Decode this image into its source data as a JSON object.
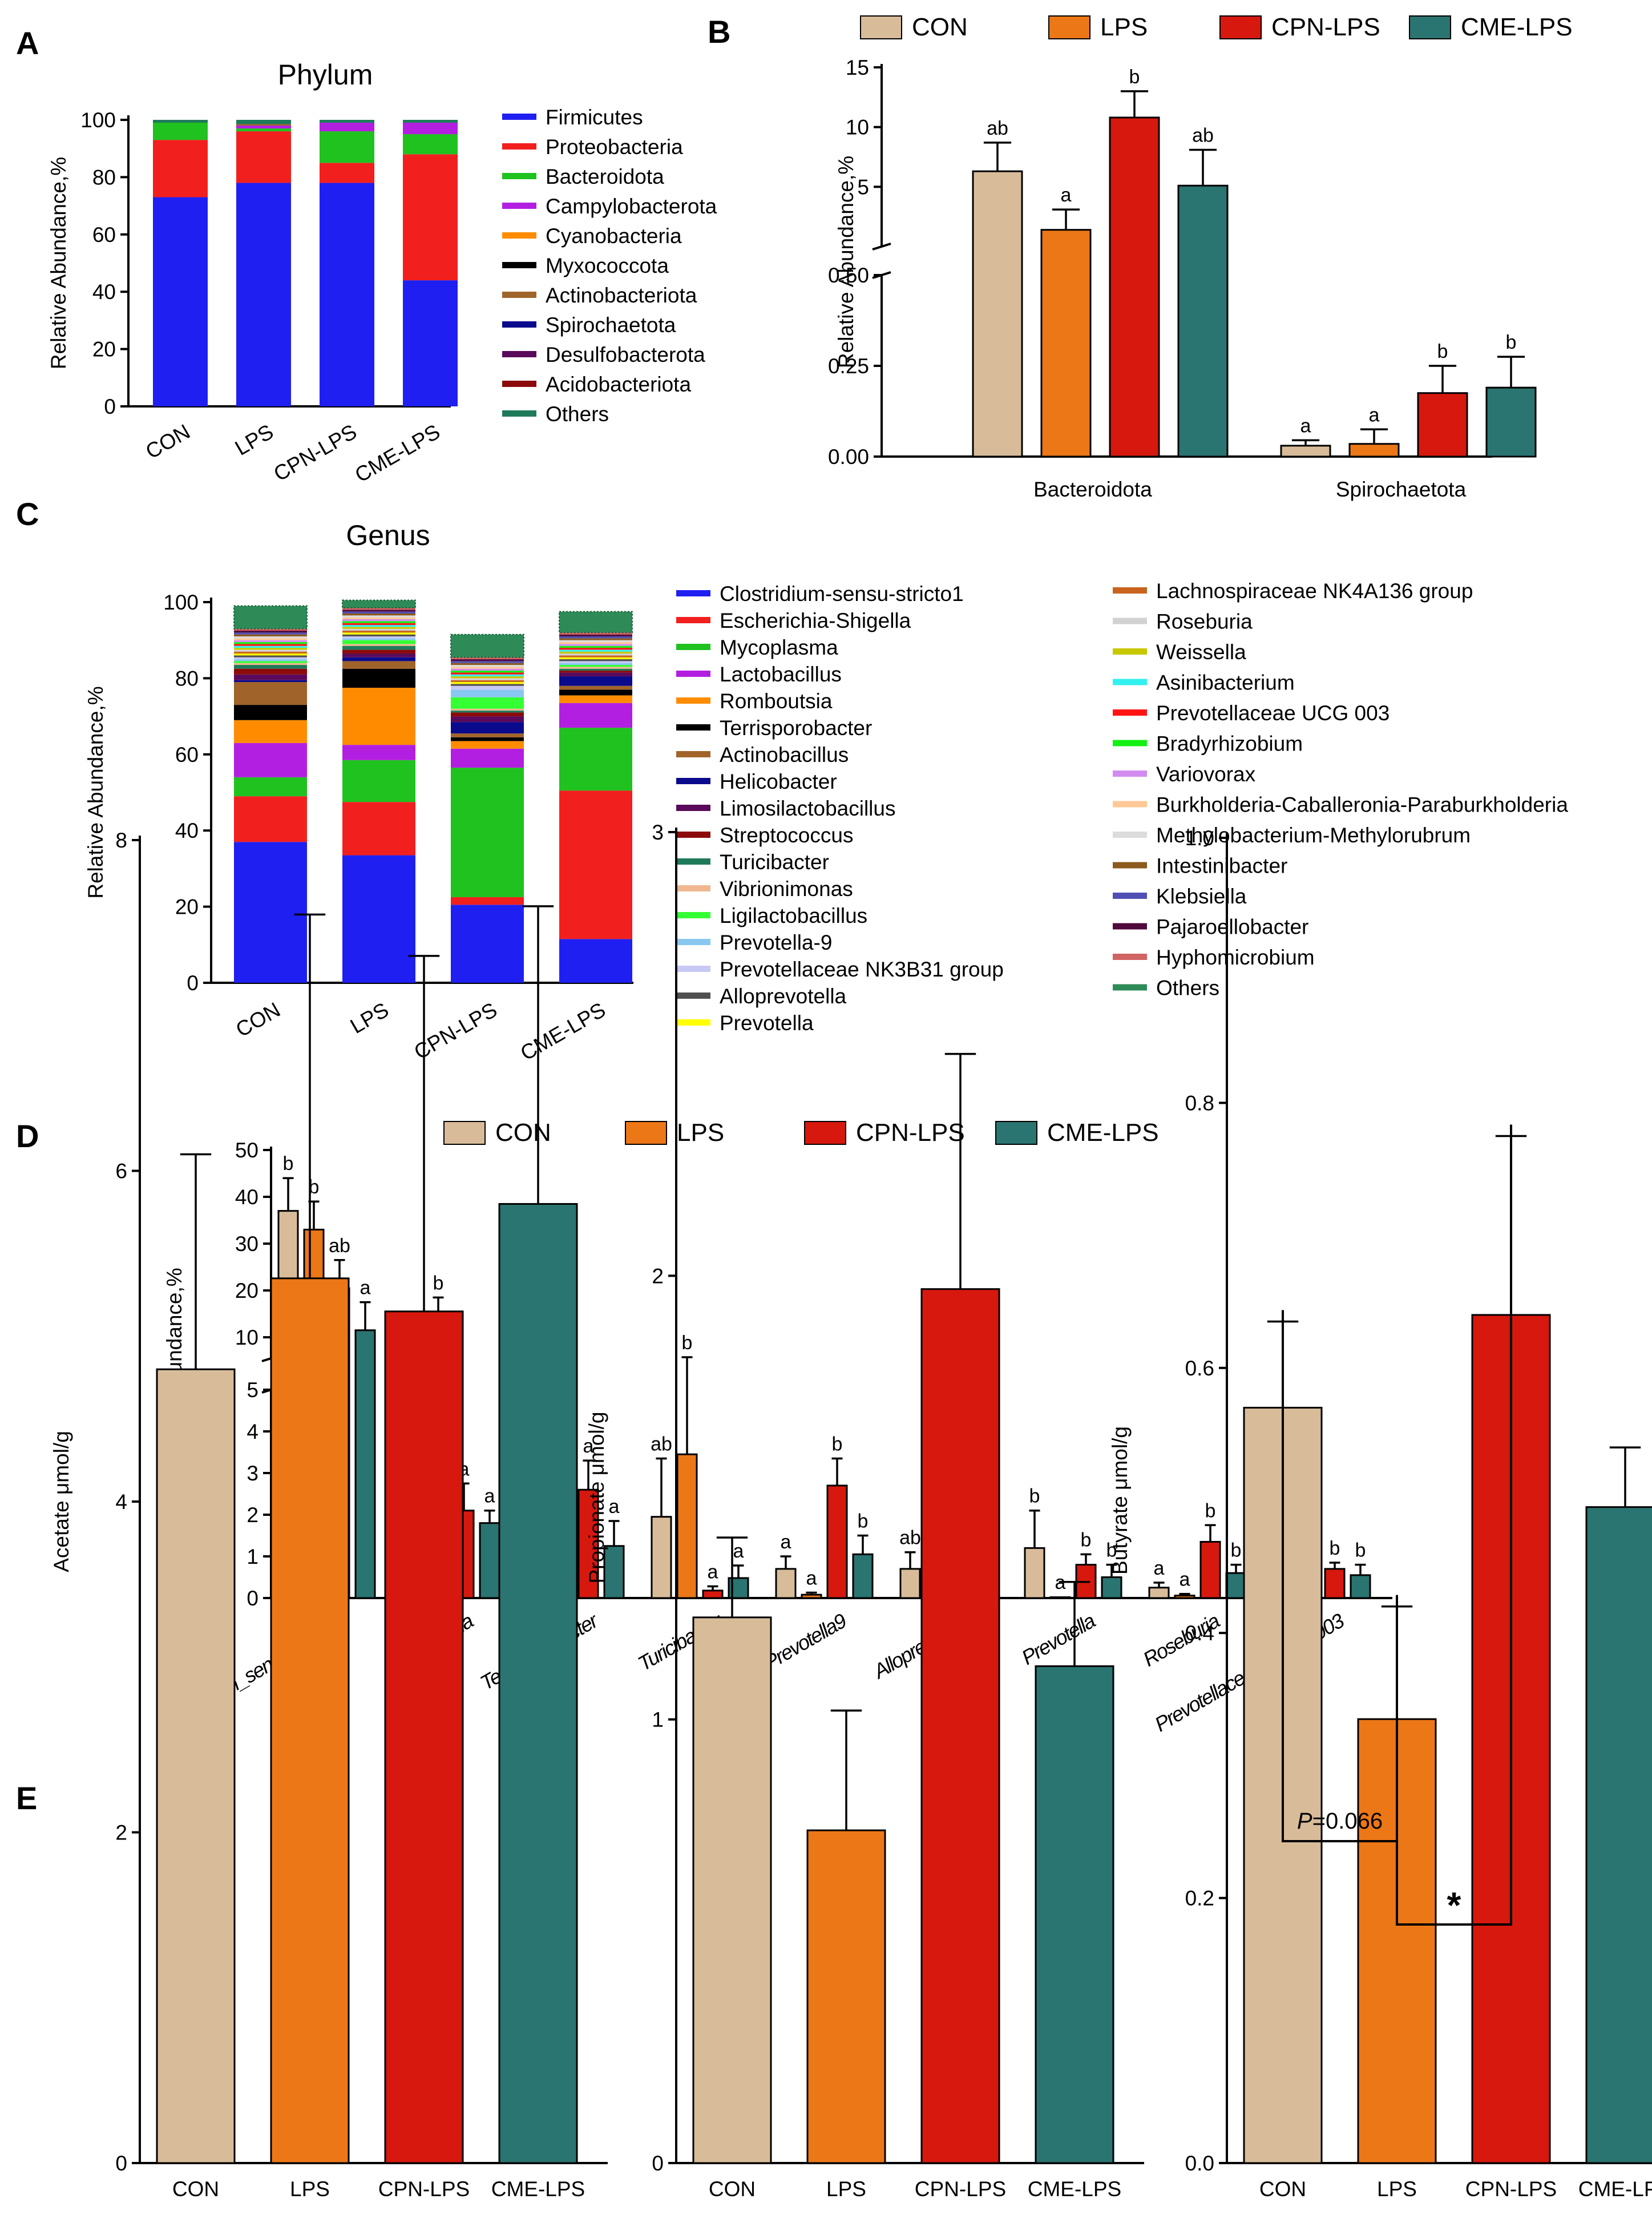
{
  "colors": {
    "CON": "#d8bc9a",
    "LPS": "#ec7716",
    "CPN-LPS": "#d7180e",
    "CME-LPS": "#2a7471"
  },
  "group_legend": [
    "CON",
    "LPS",
    "CPN-LPS",
    "CME-LPS"
  ],
  "chart_data": [
    {
      "id": "A",
      "type": "bar",
      "stacked": true,
      "panel_label": "A",
      "title": "Phylum",
      "ylabel": "Relative Abundance,%",
      "ylim": [
        0,
        100
      ],
      "yticks": [
        0,
        20,
        40,
        60,
        80,
        100
      ],
      "categories": [
        "CON",
        "LPS",
        "CPN-LPS",
        "CME-LPS"
      ],
      "series": [
        {
          "name": "Firmicutes",
          "color": "#1f1ff2",
          "values": [
            73,
            78,
            78,
            44
          ]
        },
        {
          "name": "Proteobacteria",
          "color": "#f21f1f",
          "values": [
            20,
            18,
            7,
            44
          ]
        },
        {
          "name": "Bacteroidota",
          "color": "#1fc21f",
          "values": [
            6,
            1,
            11,
            7
          ]
        },
        {
          "name": "Campylobacterota",
          "color": "#b31fe0",
          "values": [
            0,
            1,
            3,
            4
          ]
        },
        {
          "name": "Cyanobacteria",
          "color": "#ff8c00",
          "values": [
            0,
            0,
            0,
            0
          ]
        },
        {
          "name": "Myxococcota",
          "color": "#000000",
          "values": [
            0,
            0,
            0,
            0
          ]
        },
        {
          "name": "Actinobacteriota",
          "color": "#a0642a",
          "values": [
            0,
            0.5,
            0,
            0
          ]
        },
        {
          "name": "Spirochaetota",
          "color": "#0a0a8c",
          "values": [
            0,
            0,
            0,
            0
          ]
        },
        {
          "name": "Desulfobacterota",
          "color": "#5a0a5a",
          "values": [
            0,
            0,
            0,
            0
          ]
        },
        {
          "name": "Acidobacteriota",
          "color": "#8c0a0a",
          "values": [
            0,
            0,
            0,
            0
          ]
        },
        {
          "name": "Others",
          "color": "#1f7a5a",
          "values": [
            1,
            1.5,
            1,
            1
          ]
        }
      ]
    },
    {
      "id": "B",
      "type": "bar",
      "panel_label": "B",
      "ylabel": "Relative Abundance,%",
      "broken_axis": true,
      "upper_yticks": [
        5,
        10,
        15
      ],
      "lower_yticks": [
        0.0,
        0.25,
        0.5
      ],
      "lower_ytick_labels": [
        "0.00",
        "0.25",
        "0.50"
      ],
      "categories": [
        "Bacteroidota",
        "Spirochaetota"
      ],
      "series": [
        {
          "name": "CON",
          "values": [
            6.3,
            0.03
          ],
          "errors": [
            2.4,
            0.015
          ],
          "letters": [
            "ab",
            "a"
          ]
        },
        {
          "name": "LPS",
          "values": [
            1.4,
            0.035
          ],
          "errors": [
            1.7,
            0.04
          ],
          "letters": [
            "a",
            "a"
          ]
        },
        {
          "name": "CPN-LPS",
          "values": [
            10.8,
            0.175
          ],
          "errors": [
            2.2,
            0.075
          ],
          "letters": [
            "b",
            "b"
          ]
        },
        {
          "name": "CME-LPS",
          "values": [
            5.1,
            0.19
          ],
          "errors": [
            3.0,
            0.085
          ],
          "letters": [
            "ab",
            "b"
          ]
        }
      ]
    },
    {
      "id": "C",
      "type": "bar",
      "stacked": true,
      "panel_label": "C",
      "title": "Genus",
      "ylabel": "Relative Abundance,%",
      "ylim": [
        0,
        100
      ],
      "yticks": [
        0,
        20,
        40,
        60,
        80,
        100
      ],
      "categories": [
        "CON",
        "LPS",
        "CPN-LPS",
        "CME-LPS"
      ],
      "series": [
        {
          "name": "Clostridium-sensu-stricto1",
          "color": "#1f1ff2",
          "values": [
            37,
            33.5,
            20.5,
            11.5
          ]
        },
        {
          "name": "Escherichia-Shigella",
          "color": "#f21f1f",
          "values": [
            12,
            14,
            2,
            39
          ]
        },
        {
          "name": "Mycoplasma",
          "color": "#1fc21f",
          "values": [
            5,
            11,
            34,
            16.5
          ]
        },
        {
          "name": "Lactobacillus",
          "color": "#b31fe0",
          "values": [
            9,
            4,
            5,
            6.5
          ]
        },
        {
          "name": "Romboutsia",
          "color": "#ff8c00",
          "values": [
            6,
            15,
            2,
            2
          ]
        },
        {
          "name": "Terrisporobacter",
          "color": "#000000",
          "values": [
            4,
            5,
            1,
            1.5
          ]
        },
        {
          "name": "Actinobacillus",
          "color": "#a0642a",
          "values": [
            6,
            2,
            1,
            1
          ]
        },
        {
          "name": "Helicobacter",
          "color": "#0a0a8c",
          "values": [
            0.5,
            1,
            3,
            2.5
          ]
        },
        {
          "name": "Limosilactobacillus",
          "color": "#5a0a5a",
          "values": [
            1.5,
            1,
            1.5,
            1
          ]
        },
        {
          "name": "Streptococcus",
          "color": "#8c0a0a",
          "values": [
            1.5,
            1,
            1,
            0.5
          ]
        },
        {
          "name": "Turicibacter",
          "color": "#1f7a5a",
          "values": [
            1,
            1,
            0.5,
            0.5
          ]
        },
        {
          "name": "Vibrionimonas",
          "color": "#f0b890",
          "values": [
            0.5,
            0.5,
            0.5,
            0.5
          ]
        },
        {
          "name": "Ligilactobacillus",
          "color": "#33ff33",
          "values": [
            0.5,
            1,
            3,
            0.5
          ]
        },
        {
          "name": "Prevotella-9",
          "color": "#88c8f0",
          "values": [
            0.5,
            0.5,
            2,
            0.5
          ]
        },
        {
          "name": "Prevotellaceae NK3B31 group",
          "color": "#c8c8f5",
          "values": [
            0.5,
            0.5,
            1,
            0.5
          ]
        },
        {
          "name": "Alloprevotella",
          "color": "#505050",
          "values": [
            0.5,
            0.5,
            0.5,
            0.5
          ]
        },
        {
          "name": "Prevotella",
          "color": "#ffff00",
          "values": [
            0.5,
            0.5,
            0.5,
            0.5
          ]
        },
        {
          "name": "Lachnospiraceae NK4A136 group",
          "color": "#c8641e",
          "values": [
            0.5,
            0.5,
            0.5,
            0.5
          ]
        },
        {
          "name": "Roseburia",
          "color": "#d2d2d2",
          "values": [
            0.5,
            0.5,
            0.5,
            0.5
          ]
        },
        {
          "name": "Weissella",
          "color": "#c8c800",
          "values": [
            0.5,
            0.5,
            0.5,
            0.5
          ]
        },
        {
          "name": "Asinibacterium",
          "color": "#33f0f0",
          "values": [
            0.5,
            0.5,
            0.5,
            0.5
          ]
        },
        {
          "name": "Prevotellaceae UCG 003",
          "color": "#ff1414",
          "values": [
            0.5,
            0.5,
            0.5,
            0.5
          ]
        },
        {
          "name": "Bradyrhizobium",
          "color": "#14f014",
          "values": [
            0.5,
            0.5,
            0.5,
            0.5
          ]
        },
        {
          "name": "Variovorax",
          "color": "#d28cf0",
          "values": [
            0.5,
            0.5,
            0.5,
            0.5
          ]
        },
        {
          "name": "Burkholderia-Caballeronia-Paraburkholderia",
          "color": "#ffc896",
          "values": [
            0.5,
            0.5,
            0.5,
            0.5
          ]
        },
        {
          "name": "Methylobacterium-Methylorubrum",
          "color": "#dcdcdc",
          "values": [
            0.5,
            0.5,
            0.5,
            0.5
          ]
        },
        {
          "name": "Intestinibacter",
          "color": "#8c5a1e",
          "values": [
            0.5,
            0.5,
            0.5,
            0.5
          ]
        },
        {
          "name": "Klebsiella",
          "color": "#5050b4",
          "values": [
            0.5,
            0.5,
            0.5,
            0.5
          ]
        },
        {
          "name": "Pajaroellobacter",
          "color": "#500a3c",
          "values": [
            0.5,
            0.5,
            0.5,
            0.5
          ]
        },
        {
          "name": "Hyphomicrobium",
          "color": "#d26464",
          "values": [
            0.5,
            0.5,
            0.5,
            0.5
          ]
        },
        {
          "name": "Others",
          "color": "#2e8b57",
          "values": [
            6,
            2,
            6,
            5.5
          ]
        }
      ]
    },
    {
      "id": "D",
      "type": "bar",
      "panel_label": "D",
      "ylabel": "Relative Abundance,%",
      "broken_axis": true,
      "upper_yticks": [
        10,
        20,
        30,
        40,
        50
      ],
      "lower_yticks": [
        0,
        1,
        2,
        3,
        4,
        5
      ],
      "categories": [
        "Clostridium_sensu_stricto1",
        "Romboutsia",
        "Terrisporobacter",
        "Turicibacter",
        "Prevotella9",
        "Alloprevotella",
        "Prevotella",
        "Roseburia",
        "Prevotellaceae_UCG_003"
      ],
      "series": [
        {
          "name": "CON",
          "values": [
            37,
            1.1,
            3.9,
            1.95,
            0.7,
            0.7,
            1.2,
            0.25,
            0.15
          ],
          "errors": [
            7,
            3.5,
            0.65,
            1.4,
            0.3,
            0.4,
            0.9,
            0.12,
            0.08
          ],
          "letters": [
            "b",
            "a",
            "ab",
            "ab",
            "a",
            "ab",
            "b",
            "a",
            "ab"
          ]
        },
        {
          "name": "LPS",
          "values": [
            33,
            15,
            5,
            3.45,
            0.08,
            0.01,
            0.02,
            0.06,
            0.01
          ],
          "errors": [
            6,
            3.5,
            1.5,
            2.3,
            0.05,
            0.01,
            0.01,
            0.04,
            0.01
          ],
          "letters": [
            "b",
            "b",
            "b",
            "b",
            "a",
            "a",
            "a",
            "a",
            "a"
          ]
        },
        {
          "name": "CPN-LPS",
          "values": [
            20.5,
            2.1,
            2.6,
            0.18,
            2.7,
            1.45,
            0.8,
            1.35,
            0.7
          ],
          "errors": [
            6,
            0.65,
            0.7,
            0.1,
            0.65,
            0.35,
            0.25,
            0.4,
            0.15
          ],
          "letters": [
            "ab",
            "a",
            "a",
            "a",
            "b",
            "b",
            "b",
            "b",
            "b"
          ]
        },
        {
          "name": "CME-LPS",
          "values": [
            11.5,
            1.8,
            1.25,
            0.48,
            1.05,
            0.9,
            0.5,
            0.6,
            0.55
          ],
          "errors": [
            6,
            0.3,
            0.6,
            0.3,
            0.45,
            0.45,
            0.3,
            0.2,
            0.25
          ],
          "letters": [
            "a",
            "a",
            "a",
            "a",
            "b",
            "b",
            "b",
            "b",
            "b"
          ]
        }
      ]
    },
    {
      "id": "E1",
      "type": "bar",
      "panel_label": "E",
      "ylabel": "Acetate μmol/g",
      "ylim": [
        0,
        8
      ],
      "yticks": [
        0,
        2,
        4,
        6,
        8
      ],
      "categories": [
        "CON",
        "LPS",
        "CPN-LPS",
        "CME-LPS"
      ],
      "values": [
        4.8,
        5.35,
        5.15,
        5.8
      ],
      "errors": [
        1.3,
        2.2,
        2.15,
        1.8
      ]
    },
    {
      "id": "E2",
      "type": "bar",
      "ylabel": "Propionate μmol/g",
      "ylim": [
        0,
        3
      ],
      "yticks": [
        0,
        1,
        2,
        3
      ],
      "categories": [
        "CON",
        "LPS",
        "CPN-LPS",
        "CME-LPS"
      ],
      "values": [
        1.23,
        0.75,
        1.97,
        1.12
      ],
      "errors": [
        0.18,
        0.27,
        0.53,
        0.19
      ]
    },
    {
      "id": "E3",
      "type": "bar",
      "ylabel": "Butyrate μmol/g",
      "ylim": [
        0,
        1.0
      ],
      "yticks": [
        0.0,
        0.2,
        0.4,
        0.6,
        0.8,
        1.0
      ],
      "ytick_labels": [
        "0.0",
        "0.2",
        "0.4",
        "0.6",
        "0.8",
        "1.0"
      ],
      "categories": [
        "CON",
        "LPS",
        "CPN-LPS",
        "CME-LPS"
      ],
      "values": [
        0.57,
        0.335,
        0.64,
        0.495
      ],
      "errors": [
        0.065,
        0.085,
        0.135,
        0.045
      ],
      "annotations": [
        {
          "from": 0,
          "to": 1,
          "p_prefix": "P",
          "p_value": "=0.066"
        },
        {
          "from": 1,
          "to": 2,
          "text": "*"
        }
      ]
    }
  ]
}
